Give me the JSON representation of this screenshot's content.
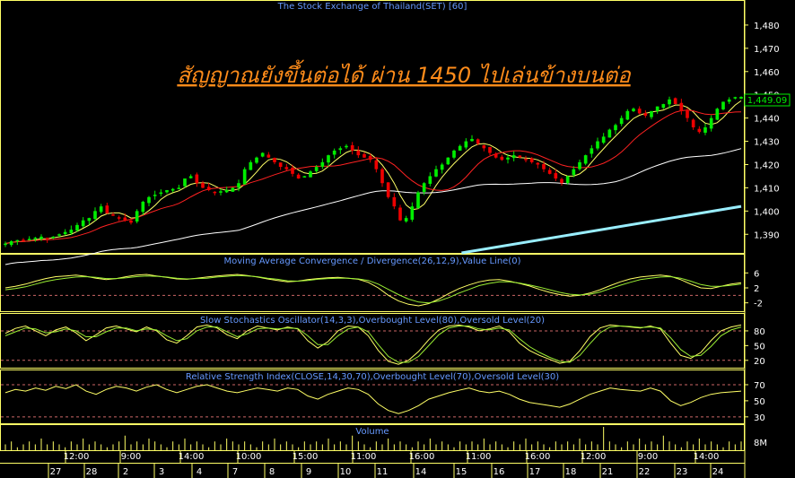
{
  "title": "The Stock Exchange of Thailand(SET) [60]",
  "annotation": "สัญญาณยังขึ้นต่อได้ ผ่าน 1450 ไปเล่นข้างบนต่อ",
  "last_price_label": "1,449.09",
  "colors": {
    "background": "#000000",
    "frame": "#ffff66",
    "title": "#6699ff",
    "annotation": "#ff8c1a",
    "candle_up": "#00ee00",
    "candle_down": "#ee0000",
    "ma_short": "#ffff66",
    "ma_mid": "#ff2222",
    "ma_long": "#ffffff",
    "ma_cyan": "#99eeff",
    "osc_line": "#ffff66",
    "osc_signal": "#99ee33",
    "level_line": "#cc6666",
    "axis_text": "#ffffff"
  },
  "chart_data": [
    {
      "type": "candlestick",
      "title": "The Stock Exchange of Thailand(SET) [60]",
      "ylim": [
        1382,
        1490
      ],
      "y_ticks": [
        "1,390",
        "1,400",
        "1,410",
        "1,420",
        "1,430",
        "1,440",
        "1,450",
        "1,460",
        "1,470",
        "1,480"
      ],
      "y_tick_values": [
        1390,
        1400,
        1410,
        1420,
        1430,
        1440,
        1450,
        1460,
        1470,
        1480
      ],
      "last_value": 1449.09,
      "close": [
        1386.0,
        1387.0,
        1387.5,
        1387.2,
        1388.0,
        1388.5,
        1389.0,
        1388.0,
        1389.0,
        1390.0,
        1391.0,
        1392.0,
        1394.0,
        1396.0,
        1397.0,
        1400.0,
        1402.0,
        1399.0,
        1398.0,
        1397.0,
        1396.0,
        1395.0,
        1400.0,
        1404.0,
        1406.0,
        1407.0,
        1408.0,
        1409.0,
        1409.5,
        1410.0,
        1414.0,
        1415.0,
        1412.0,
        1410.0,
        1409.0,
        1408.0,
        1408.5,
        1409.0,
        1410.0,
        1412.0,
        1418.0,
        1421.0,
        1423.0,
        1425.0,
        1423.0,
        1421.0,
        1419.0,
        1418.0,
        1416.0,
        1414.0,
        1415.0,
        1417.0,
        1419.0,
        1421.0,
        1424.0,
        1426.0,
        1427.0,
        1428.0,
        1426.0,
        1424.0,
        1423.0,
        1422.0,
        1418.0,
        1412.0,
        1406.0,
        1402.0,
        1396.0,
        1397.0,
        1402.0,
        1408.0,
        1412.0,
        1415.0,
        1418.0,
        1420.0,
        1423.0,
        1426.0,
        1428.0,
        1430.0,
        1431.0,
        1429.0,
        1427.0,
        1425.0,
        1423.0,
        1422.0,
        1423.0,
        1424.0,
        1423.0,
        1422.0,
        1421.0,
        1420.0,
        1418.0,
        1416.0,
        1414.0,
        1412.0,
        1415.0,
        1418.0,
        1421.0,
        1424.0,
        1427.0,
        1430.0,
        1432.0,
        1435.0,
        1437.0,
        1440.0,
        1443.0,
        1444.0,
        1442.0,
        1441.0,
        1443.0,
        1445.0,
        1446.0,
        1448.0,
        1446.0,
        1443.0,
        1440.0,
        1436.0,
        1434.0,
        1436.0,
        1440.0,
        1444.0,
        1447.0,
        1448.0,
        1449.0,
        1449.09
      ],
      "series_lines": [
        {
          "key": "ma_short",
          "color": "#ffff66"
        },
        {
          "key": "ma_mid",
          "color": "#ff2222"
        },
        {
          "key": "ma_long",
          "color": "#ffffff"
        }
      ],
      "cyan_line": {
        "start": 1382,
        "end": 1402,
        "from_fraction": 0.62
      }
    },
    {
      "type": "line",
      "title": "Moving Average Convergence / Divergence(26,12,9),Value Line(0)",
      "ylim": [
        -4,
        8
      ],
      "y_ticks": [
        "6",
        "2",
        "-2"
      ],
      "y_tick_values": [
        6,
        2,
        -2
      ],
      "levels": [
        0
      ],
      "series": [
        {
          "values": [
            2.0,
            2.4,
            3.0,
            3.8,
            4.5,
            5.0,
            5.2,
            5.4,
            5.1,
            4.6,
            4.2,
            4.5,
            5.0,
            5.4,
            5.6,
            5.2,
            4.8,
            4.4,
            4.3,
            4.6,
            4.9,
            5.2,
            5.4,
            5.6,
            5.3,
            4.9,
            4.4,
            4.0,
            3.6,
            3.8,
            4.2,
            4.5,
            4.7,
            4.8,
            4.6,
            4.3,
            3.5,
            2.0,
            0.0,
            -1.5,
            -2.4,
            -2.8,
            -2.2,
            -1.0,
            0.5,
            1.8,
            2.8,
            3.6,
            4.1,
            4.2,
            3.8,
            3.2,
            2.5,
            1.6,
            0.8,
            0.2,
            -0.2,
            0.0,
            0.6,
            1.5,
            2.6,
            3.6,
            4.4,
            4.9,
            5.2,
            5.4,
            5.1,
            4.2,
            3.0,
            2.0,
            1.8,
            2.4,
            3.0,
            3.4
          ]
        },
        {
          "values": [
            1.5,
            1.8,
            2.3,
            3.0,
            3.7,
            4.2,
            4.6,
            4.9,
            5.0,
            4.8,
            4.5,
            4.5,
            4.7,
            5.0,
            5.2,
            5.1,
            4.9,
            4.6,
            4.4,
            4.5,
            4.6,
            4.9,
            5.1,
            5.3,
            5.2,
            5.0,
            4.6,
            4.3,
            3.9,
            3.8,
            4.0,
            4.3,
            4.5,
            4.6,
            4.6,
            4.4,
            4.0,
            3.0,
            1.6,
            0.2,
            -1.0,
            -1.8,
            -2.0,
            -1.5,
            -0.6,
            0.6,
            1.6,
            2.6,
            3.2,
            3.6,
            3.6,
            3.3,
            2.8,
            2.2,
            1.5,
            0.8,
            0.3,
            0.1,
            0.3,
            0.9,
            1.8,
            2.7,
            3.5,
            4.2,
            4.6,
            4.9,
            5.0,
            4.6,
            3.8,
            2.9,
            2.4,
            2.4,
            2.7,
            3.0
          ]
        }
      ]
    },
    {
      "type": "line",
      "title": "Slow Stochastics Oscillator(14,3,3),Overbought Level(80),Oversold Level(20)",
      "ylim": [
        5,
        100
      ],
      "y_ticks": [
        "80",
        "50",
        "20"
      ],
      "y_tick_values": [
        80,
        50,
        20
      ],
      "levels": [
        80,
        20
      ],
      "series": [
        {
          "values": [
            75,
            85,
            90,
            80,
            70,
            82,
            88,
            76,
            60,
            72,
            86,
            90,
            84,
            78,
            88,
            80,
            62,
            55,
            70,
            88,
            92,
            86,
            72,
            64,
            80,
            90,
            86,
            82,
            88,
            84,
            60,
            45,
            58,
            80,
            90,
            88,
            70,
            40,
            18,
            12,
            20,
            38,
            62,
            82,
            90,
            92,
            88,
            80,
            84,
            90,
            78,
            55,
            40,
            30,
            22,
            14,
            18,
            40,
            68,
            86,
            92,
            90,
            88,
            86,
            90,
            84,
            55,
            30,
            24,
            36,
            60,
            80,
            88,
            92
          ]
        },
        {
          "values": [
            70,
            78,
            86,
            84,
            76,
            78,
            84,
            80,
            68,
            68,
            78,
            86,
            86,
            80,
            84,
            82,
            70,
            60,
            64,
            80,
            88,
            88,
            78,
            68,
            74,
            84,
            86,
            84,
            86,
            85,
            70,
            52,
            52,
            70,
            84,
            88,
            78,
            52,
            28,
            16,
            16,
            28,
            50,
            72,
            86,
            90,
            90,
            84,
            82,
            86,
            82,
            64,
            48,
            36,
            26,
            18,
            16,
            30,
            54,
            76,
            88,
            90,
            89,
            87,
            88,
            86,
            66,
            42,
            28,
            30,
            48,
            70,
            82,
            88
          ]
        }
      ]
    },
    {
      "type": "line",
      "title": "Relative Strength Index(CLOSE,14,30,70),Overbought Level(70),Oversold Level(30)",
      "ylim": [
        22,
        80
      ],
      "y_ticks": [
        "70",
        "50",
        "30"
      ],
      "y_tick_values": [
        70,
        50,
        30
      ],
      "levels": [
        70,
        30
      ],
      "series": [
        {
          "values": [
            60,
            64,
            62,
            66,
            63,
            68,
            65,
            70,
            62,
            58,
            64,
            68,
            66,
            62,
            67,
            70,
            64,
            60,
            64,
            68,
            70,
            66,
            62,
            60,
            63,
            66,
            64,
            62,
            66,
            64,
            56,
            52,
            58,
            62,
            66,
            64,
            58,
            46,
            38,
            34,
            38,
            44,
            52,
            56,
            60,
            63,
            66,
            62,
            60,
            62,
            58,
            52,
            48,
            46,
            44,
            42,
            46,
            52,
            58,
            62,
            66,
            64,
            63,
            62,
            66,
            62,
            50,
            44,
            48,
            54,
            58,
            60,
            61,
            62
          ]
        }
      ]
    },
    {
      "type": "bar",
      "title": "Volume",
      "y_ticks": [
        "8M"
      ],
      "values": [
        2,
        3,
        1,
        2,
        3,
        2,
        4,
        2,
        3,
        2,
        1,
        3,
        2,
        4,
        2,
        3,
        2,
        1,
        2,
        3,
        5,
        2,
        3,
        2,
        4,
        3,
        2,
        1,
        3,
        2,
        4,
        2,
        3,
        2,
        1,
        3,
        2,
        4,
        3,
        2,
        3,
        2,
        1,
        3,
        2,
        4,
        2,
        3,
        2,
        1,
        3,
        2,
        3,
        2,
        4,
        2,
        3,
        2,
        5,
        3,
        2,
        1,
        3,
        2,
        4,
        2,
        3,
        2,
        1,
        3,
        2,
        4,
        2,
        3,
        2,
        1,
        3,
        2,
        3,
        2,
        4,
        2,
        3,
        2,
        1,
        3,
        2,
        4,
        2,
        3,
        2,
        1,
        3,
        2,
        3,
        2,
        4,
        2,
        3,
        2,
        8,
        3,
        2,
        1,
        3,
        2,
        4,
        2,
        3,
        2,
        5,
        3,
        2,
        1,
        3,
        2,
        4,
        2,
        3,
        2,
        1,
        3,
        2,
        3
      ]
    }
  ],
  "time_labels": [
    "12:00",
    "9:00",
    "14:00",
    "10:00",
    "15:00",
    "11:00",
    "16:00",
    "11:00",
    "16:00",
    "12:00",
    "9:00",
    "14:00"
  ],
  "date_labels": [
    "27",
    "28",
    "2",
    "3",
    "4",
    "7",
    "8",
    "9",
    "10",
    "11",
    "14",
    "15",
    "16",
    "17",
    "18",
    "21",
    "22",
    "23",
    "24"
  ]
}
